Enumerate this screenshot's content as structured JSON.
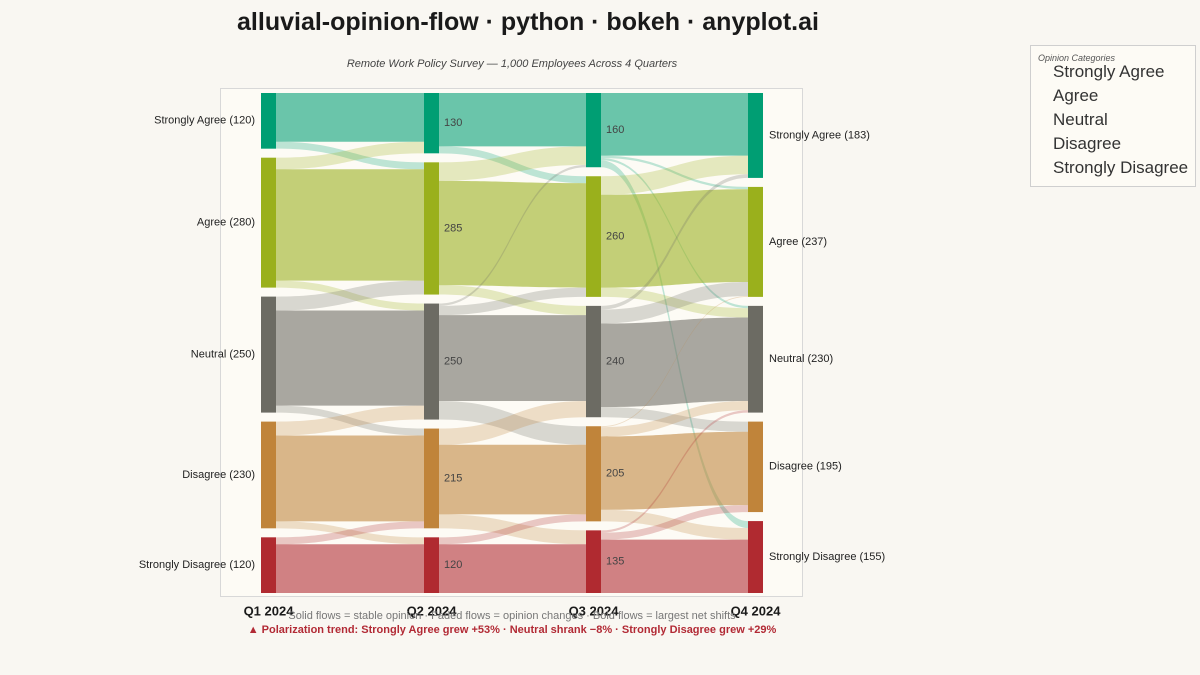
{
  "title": "alluvial-opinion-flow · python · bokeh · anyplot.ai",
  "subtitle": "Remote Work Policy Survey — 1,000 Employees Across 4 Quarters",
  "legend": {
    "title": "Opinion Categories",
    "items": [
      "Strongly Agree",
      "Agree",
      "Neutral",
      "Disagree",
      "Strongly Disagree"
    ]
  },
  "footnote": "Solid flows = stable opinion · Faded flows = opinion changes · Bold flows = largest net shifts",
  "insight": "▲ Polarization trend: Strongly Agree grew +53%  ·  Neutral shrank −8%  ·  Strongly Disagree grew +29%",
  "chart_data": {
    "type": "alluvial",
    "time_points": [
      "Q1 2024",
      "Q2 2024",
      "Q3 2024",
      "Q4 2024"
    ],
    "categories": [
      "Strongly Agree",
      "Agree",
      "Neutral",
      "Disagree",
      "Strongly Disagree"
    ],
    "colors": {
      "Strongly Agree": "#009e73",
      "Agree": "#9ab01c",
      "Neutral": "#6c6b63",
      "Disagree": "#c0843a",
      "Strongly Disagree": "#b02a30"
    },
    "totals": [
      [
        120,
        280,
        250,
        230,
        120
      ],
      [
        130,
        285,
        250,
        215,
        120
      ],
      [
        160,
        260,
        240,
        205,
        135
      ],
      [
        183,
        237,
        230,
        195,
        155
      ]
    ],
    "left_labels": [
      "Strongly Agree (120)",
      "Agree (280)",
      "Neutral (250)",
      "Disagree (230)",
      "Strongly Disagree (120)"
    ],
    "right_labels": [
      "Strongly Agree (183)",
      "Agree (237)",
      "Neutral (230)",
      "Disagree (195)",
      "Strongly Disagree (155)"
    ],
    "mid_labels": [
      [
        "130",
        "285",
        "250",
        "215",
        "120"
      ],
      [
        "160",
        "260",
        "240",
        "205",
        "135"
      ]
    ],
    "flows": [
      [
        [
          105,
          15,
          0,
          0,
          0
        ],
        [
          25,
          240,
          15,
          0,
          0
        ],
        [
          0,
          30,
          205,
          15,
          0
        ],
        [
          0,
          0,
          30,
          185,
          15
        ],
        [
          0,
          0,
          0,
          15,
          105
        ]
      ],
      [
        [
          115,
          15,
          0,
          0,
          0
        ],
        [
          40,
          225,
          20,
          0,
          0
        ],
        [
          5,
          20,
          185,
          40,
          0
        ],
        [
          0,
          0,
          35,
          150,
          30
        ],
        [
          0,
          0,
          0,
          15,
          105
        ]
      ],
      [
        [
          135,
          5,
          5,
          0,
          15
        ],
        [
          40,
          200,
          20,
          0,
          0
        ],
        [
          8,
          30,
          180,
          22,
          0
        ],
        [
          0,
          2,
          20,
          158,
          25
        ],
        [
          0,
          0,
          5,
          15,
          115
        ]
      ]
    ]
  }
}
